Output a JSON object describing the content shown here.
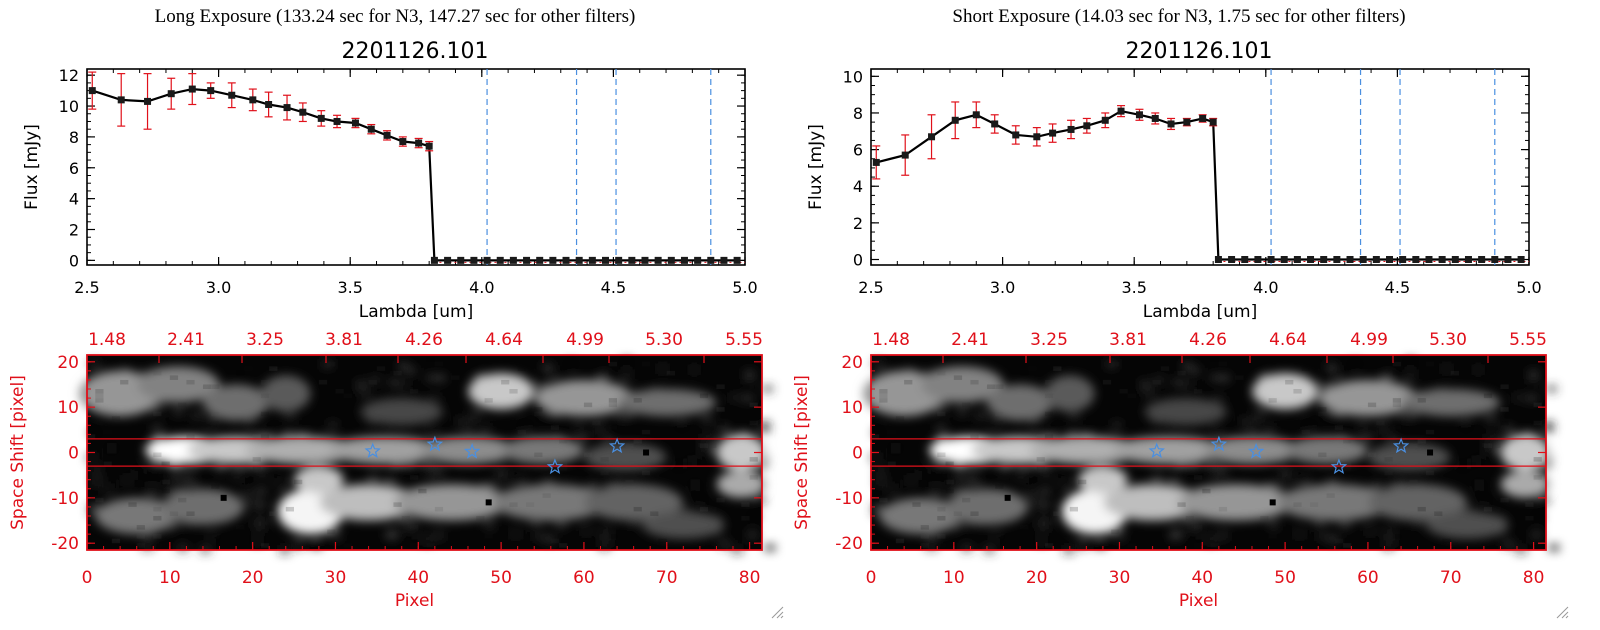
{
  "colors": {
    "axis": "#000000",
    "red": "#e0101a",
    "blue": "#4a8fe0",
    "line": "#000000",
    "marker": "#1a1a1a",
    "image_bg": "#050505"
  },
  "chart_data": [
    {
      "type": "line",
      "title": "2201126.101",
      "header": "Long Exposure (133.24 sec for N3, 147.27 sec for other filters)",
      "xlabel": "Lambda [um]",
      "ylabel": "Flux [mJy]",
      "xlim": [
        2.5,
        5.0
      ],
      "ylim": [
        -0.3,
        12.4
      ],
      "xticks": [
        "2.5",
        "3.0",
        "3.5",
        "4.0",
        "4.5",
        "5.0"
      ],
      "yticks": [
        "0",
        "2",
        "4",
        "6",
        "8",
        "10",
        "12"
      ],
      "vlines": [
        4.02,
        4.36,
        4.51,
        4.87
      ],
      "series": [
        {
          "name": "flux",
          "x": [
            2.52,
            2.63,
            2.73,
            2.82,
            2.9,
            2.97,
            3.05,
            3.13,
            3.19,
            3.26,
            3.32,
            3.39,
            3.45,
            3.52,
            3.58,
            3.64,
            3.7,
            3.76,
            3.8
          ],
          "y": [
            11.0,
            10.4,
            10.3,
            10.8,
            11.1,
            11.0,
            10.7,
            10.4,
            10.1,
            9.9,
            9.6,
            9.2,
            9.0,
            8.9,
            8.5,
            8.1,
            7.7,
            7.6,
            7.4
          ],
          "err": [
            1.2,
            1.7,
            1.8,
            1.0,
            1.0,
            0.5,
            0.8,
            0.7,
            0.8,
            0.8,
            0.6,
            0.5,
            0.4,
            0.3,
            0.3,
            0.3,
            0.3,
            0.3,
            0.3
          ]
        }
      ],
      "zero_x": [
        3.82,
        3.87,
        3.92,
        3.97,
        4.02,
        4.07,
        4.12,
        4.17,
        4.22,
        4.27,
        4.32,
        4.37,
        4.42,
        4.47,
        4.52,
        4.57,
        4.62,
        4.67,
        4.72,
        4.77,
        4.82,
        4.87,
        4.92,
        4.97
      ],
      "image": {
        "top_ticks": [
          "1.48",
          "2.41",
          "3.25",
          "3.81",
          "4.26",
          "4.64",
          "4.99",
          "5.30",
          "5.55"
        ],
        "xticks": [
          0,
          10,
          20,
          30,
          40,
          50,
          60,
          70,
          80
        ],
        "yticks": [
          20,
          10,
          0,
          -10,
          -20
        ],
        "xlabel": "Pixel",
        "ylabel": "Space Shift [pixel]",
        "xlim": [
          0,
          81.5
        ],
        "ylim": [
          -21.5,
          21.5
        ],
        "band_lines": [
          3,
          -3
        ],
        "stars": [
          [
            34.5,
            0.3
          ],
          [
            42,
            1.8
          ],
          [
            46.5,
            0.2
          ],
          [
            56.5,
            -3.2
          ],
          [
            64,
            1.4
          ]
        ]
      }
    },
    {
      "type": "line",
      "title": "2201126.101",
      "header": "Short Exposure (14.03 sec for N3, 1.75 sec for other filters)",
      "xlabel": "Lambda [um]",
      "ylabel": "Flux [mJy]",
      "xlim": [
        2.5,
        5.0
      ],
      "ylim": [
        -0.3,
        10.4
      ],
      "xticks": [
        "2.5",
        "3.0",
        "3.5",
        "4.0",
        "4.5",
        "5.0"
      ],
      "yticks": [
        "0",
        "2",
        "4",
        "6",
        "8",
        "10"
      ],
      "vlines": [
        4.02,
        4.36,
        4.51,
        4.87
      ],
      "series": [
        {
          "name": "flux",
          "x": [
            2.52,
            2.63,
            2.73,
            2.82,
            2.9,
            2.97,
            3.05,
            3.13,
            3.19,
            3.26,
            3.32,
            3.39,
            3.45,
            3.52,
            3.58,
            3.64,
            3.7,
            3.76,
            3.8
          ],
          "y": [
            5.3,
            5.7,
            6.7,
            7.6,
            7.9,
            7.4,
            6.8,
            6.7,
            6.9,
            7.1,
            7.3,
            7.6,
            8.1,
            7.9,
            7.7,
            7.4,
            7.5,
            7.7,
            7.5
          ],
          "err": [
            0.9,
            1.1,
            1.2,
            1.0,
            0.7,
            0.5,
            0.5,
            0.5,
            0.5,
            0.5,
            0.4,
            0.4,
            0.3,
            0.3,
            0.3,
            0.3,
            0.2,
            0.2,
            0.2
          ]
        }
      ],
      "zero_x": [
        3.82,
        3.87,
        3.92,
        3.97,
        4.02,
        4.07,
        4.12,
        4.17,
        4.22,
        4.27,
        4.32,
        4.37,
        4.42,
        4.47,
        4.52,
        4.57,
        4.62,
        4.67,
        4.72,
        4.77,
        4.82,
        4.87,
        4.92,
        4.97
      ],
      "image": {
        "top_ticks": [
          "1.48",
          "2.41",
          "3.25",
          "3.81",
          "4.26",
          "4.64",
          "4.99",
          "5.30",
          "5.55"
        ],
        "xticks": [
          0,
          10,
          20,
          30,
          40,
          50,
          60,
          70,
          80
        ],
        "yticks": [
          20,
          10,
          0,
          -10,
          -20
        ],
        "xlabel": "Pixel",
        "ylabel": "Space Shift [pixel]",
        "xlim": [
          0,
          81.5
        ],
        "ylim": [
          -21.5,
          21.5
        ],
        "band_lines": [
          3,
          -3
        ],
        "stars": [
          [
            34.5,
            0.3
          ],
          [
            42,
            1.8
          ],
          [
            46.5,
            0.2
          ],
          [
            56.5,
            -3.2
          ],
          [
            64,
            1.4
          ]
        ]
      }
    }
  ]
}
